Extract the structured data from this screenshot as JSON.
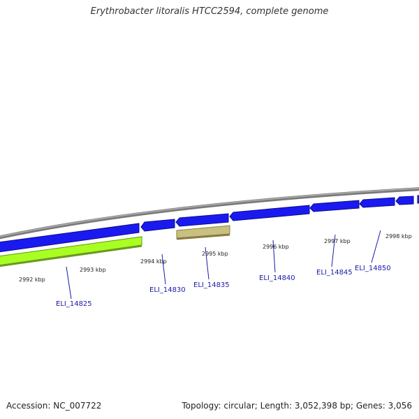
{
  "title": "Erythrobacter litoralis HTCC2594, complete genome",
  "footer": {
    "accession": "Accession: NC_007722",
    "stats": "Topology: circular; Length: 3,052,398 bp; Genes: 3,056"
  },
  "colors": {
    "backbone": "#8a8a8a",
    "cds_blue": "#1a1af0",
    "cds_green": "#aaff22",
    "cds_tan": "#c8c080",
    "tick_green": "#2a8a1a",
    "label_blue": "#1a1aaa"
  },
  "kbp_labels": [
    "2992 kbp",
    "2993 kbp",
    "2994 kbp",
    "2995 kbp",
    "2996 kbp",
    "2997 kbp",
    "2998 kbp"
  ],
  "gene_labels": [
    "ELI_14825",
    "ELI_14830",
    "ELI_14835",
    "ELI_14840",
    "ELI_14845",
    "ELI_14850"
  ]
}
